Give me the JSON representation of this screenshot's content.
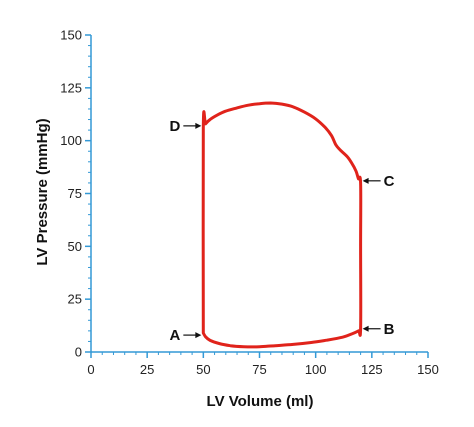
{
  "chart_data": {
    "type": "line",
    "title": "",
    "xlabel": "LV Volume (ml)",
    "ylabel": "LV Pressure (mmHg)",
    "xlim": [
      0,
      150
    ],
    "ylim": [
      0,
      150
    ],
    "x_ticks": [
      0,
      25,
      50,
      75,
      100,
      125,
      150
    ],
    "y_ticks": [
      0,
      25,
      50,
      75,
      100,
      125,
      150
    ],
    "x_minor_step": 5,
    "y_minor_step": 5,
    "grid": false,
    "series": [
      {
        "color": "#e0231b",
        "closed": true,
        "x": [
          50,
          50,
          51,
          53,
          56,
          60,
          65,
          70,
          75,
          80,
          85,
          90,
          95,
          100,
          104,
          107,
          109,
          111,
          114,
          116,
          118,
          119,
          120,
          120,
          120,
          119,
          116,
          112,
          105,
          98,
          90,
          82,
          75,
          68,
          62,
          57,
          53,
          51,
          50
        ],
        "y": [
          9,
          106,
          108,
          110,
          112,
          114,
          115.5,
          116.8,
          117.5,
          117.8,
          117.3,
          116,
          113.5,
          110.3,
          106.5,
          102.5,
          98,
          95.5,
          92.5,
          89.5,
          85.5,
          82,
          80,
          50,
          11,
          10,
          8.5,
          7,
          5.6,
          4.5,
          3.6,
          3,
          2.5,
          2.5,
          3,
          4,
          5.5,
          7.2,
          9
        ]
      }
    ],
    "annotations": [
      {
        "label": "A",
        "x": 50,
        "y": 8
      },
      {
        "label": "B",
        "x": 120,
        "y": 11
      },
      {
        "label": "C",
        "x": 120,
        "y": 81
      },
      {
        "label": "D",
        "x": 50,
        "y": 107
      }
    ],
    "axis_color": "#3399d6"
  }
}
